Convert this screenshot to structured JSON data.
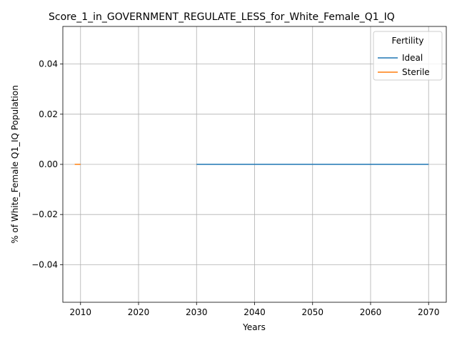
{
  "chart_data": {
    "type": "line",
    "title": "Score_1_in_GOVERNMENT_REGULATE_LESS_for_White_Female_Q1_IQ",
    "xlabel": "Years",
    "ylabel": "% of White_Female Q1_IQ Population",
    "xlim": [
      2006.95,
      2073.05
    ],
    "ylim": [
      -0.055,
      0.055
    ],
    "xticks": [
      2010,
      2020,
      2030,
      2040,
      2050,
      2060,
      2070
    ],
    "yticks": [
      -0.04,
      -0.02,
      0.0,
      0.02,
      0.04
    ],
    "ytick_labels": [
      "−0.04",
      "−0.02",
      "0.00",
      "0.02",
      "0.04"
    ],
    "grid": true,
    "legend": {
      "title": "Fertility",
      "placement": "top-right"
    },
    "series": [
      {
        "name": "Ideal",
        "color": "#1f77b4",
        "x": [
          2030,
          2035,
          2040,
          2045,
          2050,
          2055,
          2060,
          2065,
          2070
        ],
        "y": [
          0,
          0,
          0,
          0,
          0,
          0,
          0,
          0,
          0
        ]
      },
      {
        "name": "Sterile",
        "color": "#ff7f0e",
        "x": [
          2009,
          2010
        ],
        "y": [
          0,
          0
        ]
      }
    ]
  }
}
